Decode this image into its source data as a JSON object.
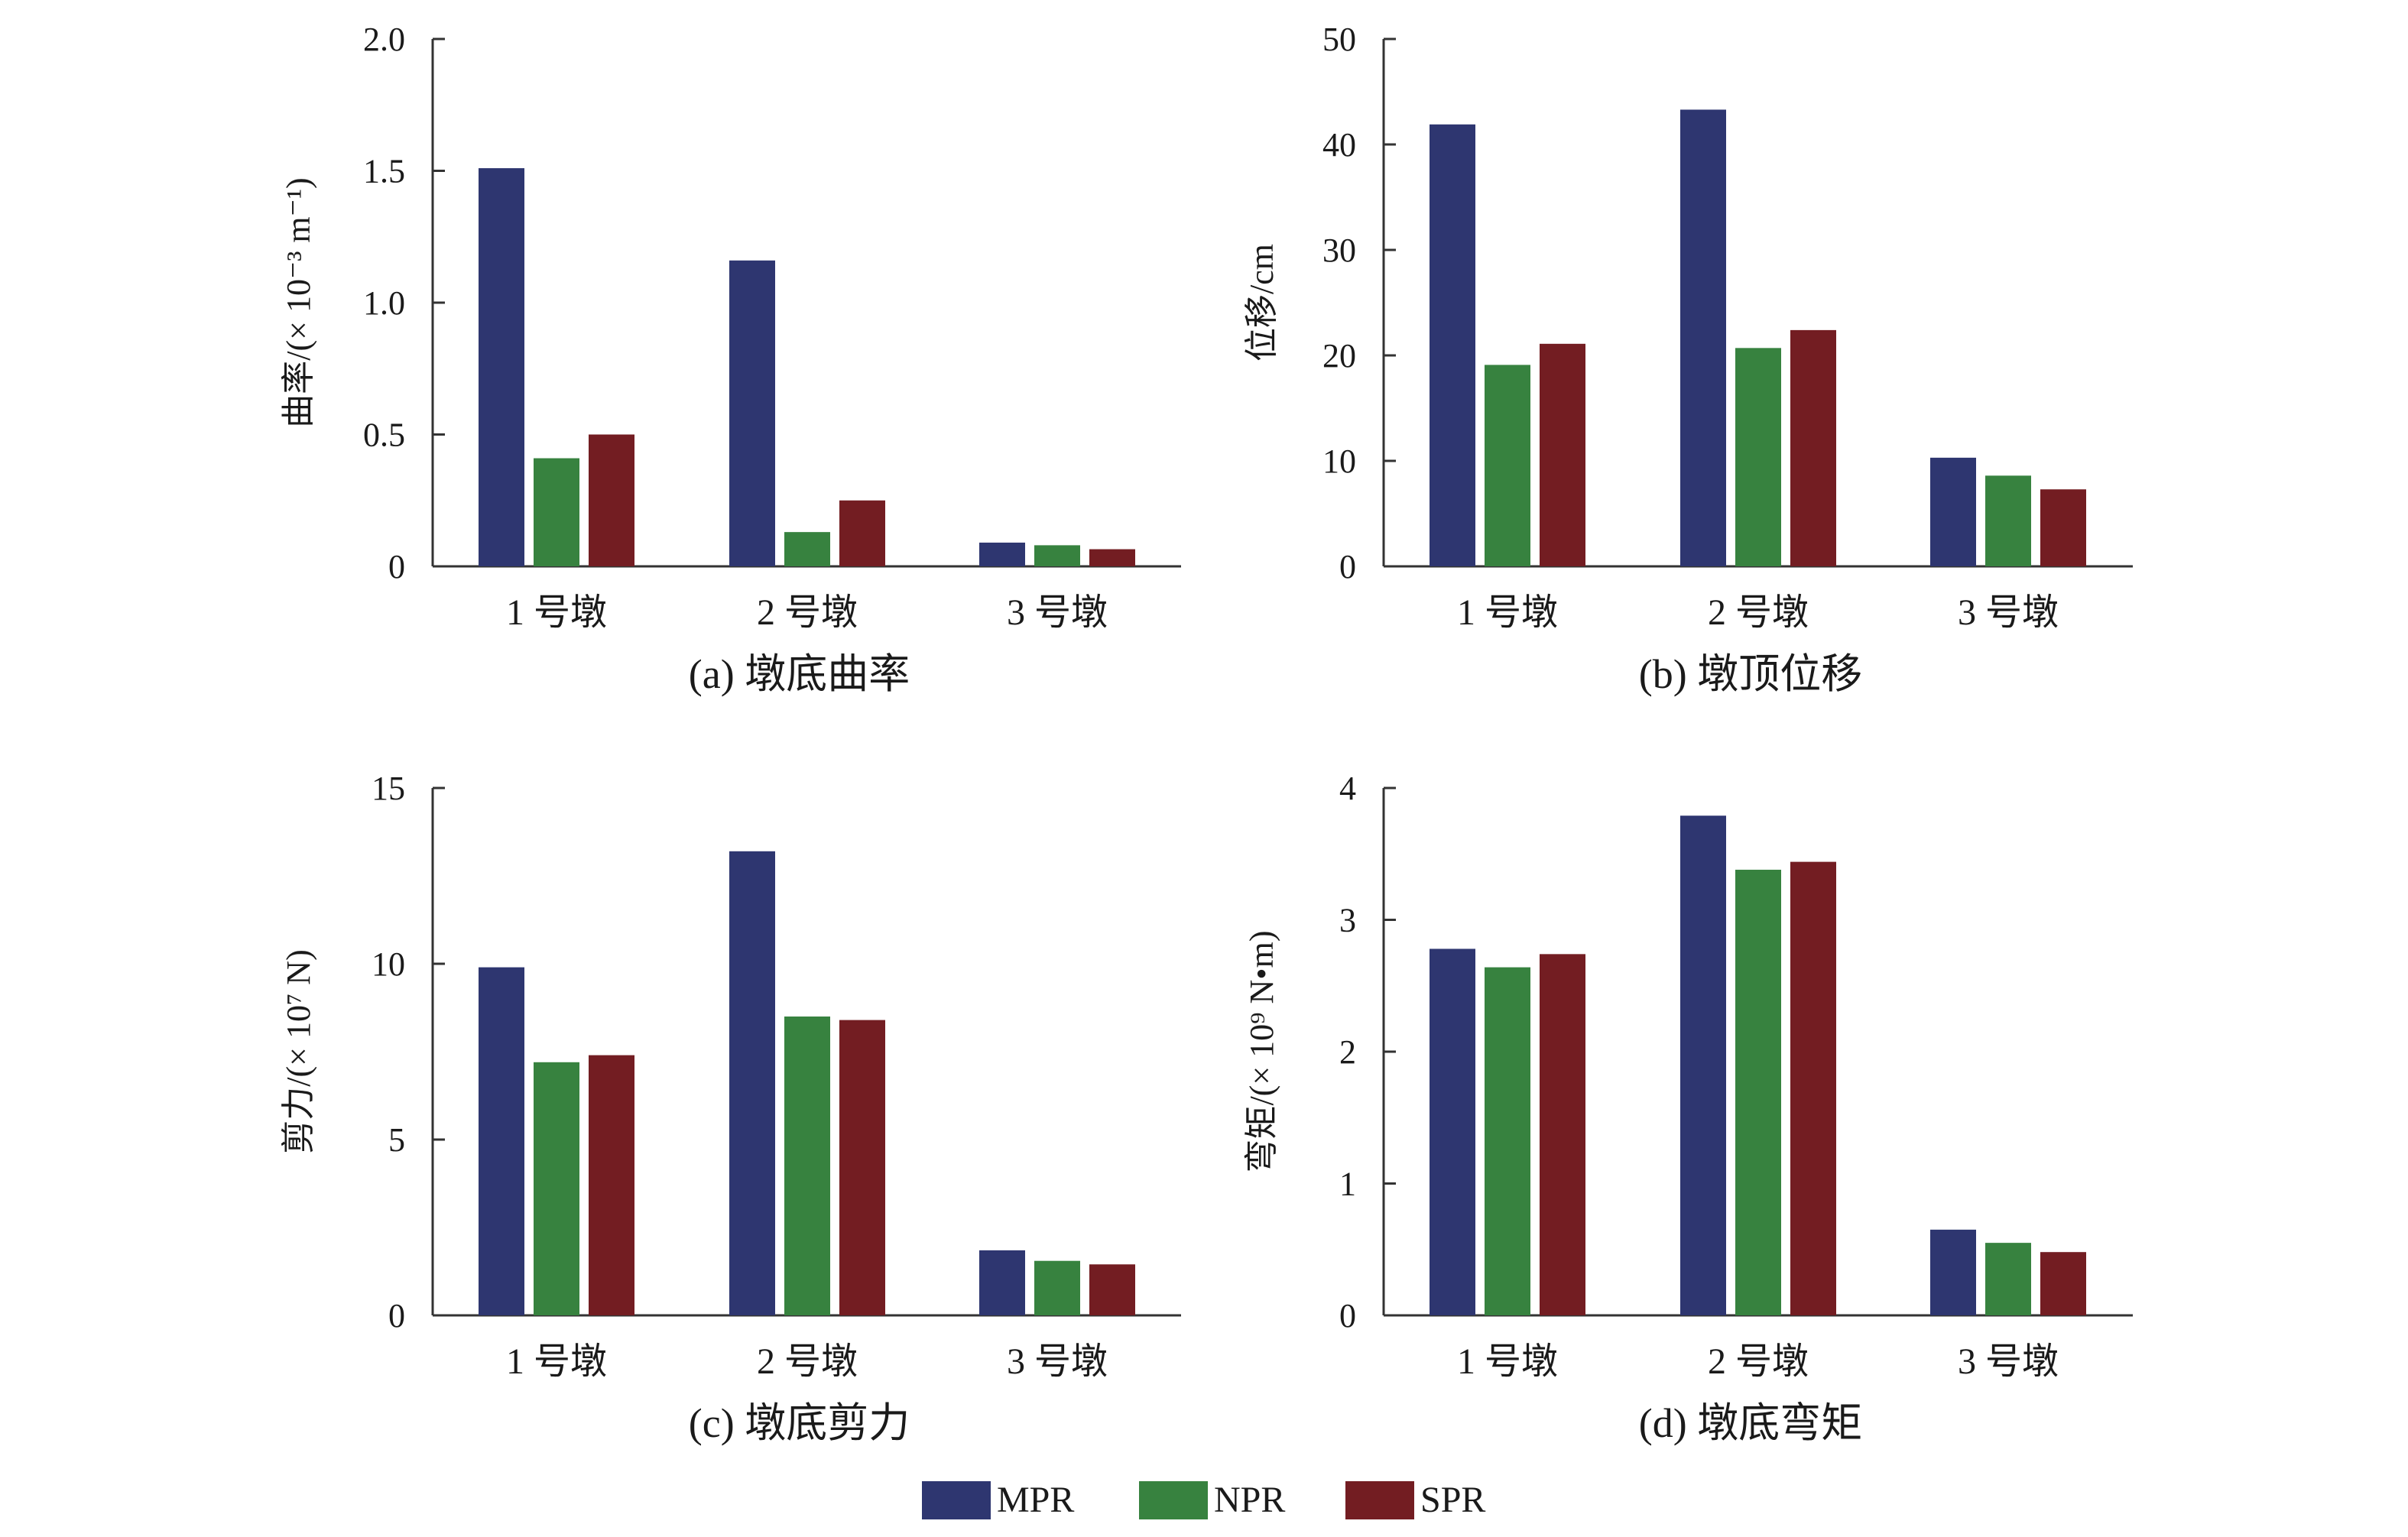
{
  "series_colors": {
    "MPR": "#2e3670",
    "NPR": "#37823f",
    "SPR": "#731d22"
  },
  "legend": [
    {
      "name": "MPR",
      "color": "#2e3670"
    },
    {
      "name": "NPR",
      "color": "#37823f"
    },
    {
      "name": "SPR",
      "color": "#731d22"
    }
  ],
  "chart_data": [
    {
      "type": "bar",
      "caption": "(a) 墩底曲率",
      "ylabel": "曲率/(× 10⁻³ m⁻¹)",
      "categories": [
        "1 号墩",
        "2 号墩",
        "3 号墩"
      ],
      "ylim": [
        0,
        2.0
      ],
      "yticks": [
        "0",
        "0.5",
        "1.0",
        "1.5",
        "2.0"
      ],
      "ytick_values": [
        0,
        0.5,
        1.0,
        1.5,
        2.0
      ],
      "series": [
        {
          "name": "MPR",
          "values": [
            1.51,
            1.16,
            0.09
          ]
        },
        {
          "name": "NPR",
          "values": [
            0.41,
            0.13,
            0.08
          ]
        },
        {
          "name": "SPR",
          "values": [
            0.5,
            0.25,
            0.065
          ]
        }
      ]
    },
    {
      "type": "bar",
      "caption": "(b) 墩顶位移",
      "ylabel": "位移/cm",
      "categories": [
        "1 号墩",
        "2 号墩",
        "3 号墩"
      ],
      "ylim": [
        0,
        50
      ],
      "yticks": [
        "0",
        "10",
        "20",
        "30",
        "40",
        "50"
      ],
      "ytick_values": [
        0,
        10,
        20,
        30,
        40,
        50
      ],
      "series": [
        {
          "name": "MPR",
          "values": [
            41.9,
            43.3,
            10.3
          ]
        },
        {
          "name": "NPR",
          "values": [
            19.1,
            20.7,
            8.6
          ]
        },
        {
          "name": "SPR",
          "values": [
            21.1,
            22.4,
            7.3
          ]
        }
      ]
    },
    {
      "type": "bar",
      "caption": "(c) 墩底剪力",
      "ylabel": "剪力/(× 10⁷ N)",
      "categories": [
        "1 号墩",
        "2 号墩",
        "3 号墩"
      ],
      "ylim": [
        0,
        15
      ],
      "yticks": [
        "0",
        "5",
        "10",
        "15"
      ],
      "ytick_values": [
        0,
        5,
        10,
        15
      ],
      "series": [
        {
          "name": "MPR",
          "values": [
            9.9,
            13.2,
            1.85
          ]
        },
        {
          "name": "NPR",
          "values": [
            7.2,
            8.5,
            1.55
          ]
        },
        {
          "name": "SPR",
          "values": [
            7.4,
            8.4,
            1.45
          ]
        }
      ]
    },
    {
      "type": "bar",
      "caption": "(d) 墩底弯矩",
      "ylabel": "弯矩/(× 10⁹ N•m)",
      "categories": [
        "1 号墩",
        "2 号墩",
        "3 号墩"
      ],
      "ylim": [
        0,
        4
      ],
      "yticks": [
        "0",
        "1",
        "2",
        "3",
        "4"
      ],
      "ytick_values": [
        0,
        1,
        2,
        3,
        4
      ],
      "series": [
        {
          "name": "MPR",
          "values": [
            2.78,
            3.79,
            0.65
          ]
        },
        {
          "name": "NPR",
          "values": [
            2.64,
            3.38,
            0.55
          ]
        },
        {
          "name": "SPR",
          "values": [
            2.74,
            3.44,
            0.48
          ]
        }
      ]
    }
  ]
}
